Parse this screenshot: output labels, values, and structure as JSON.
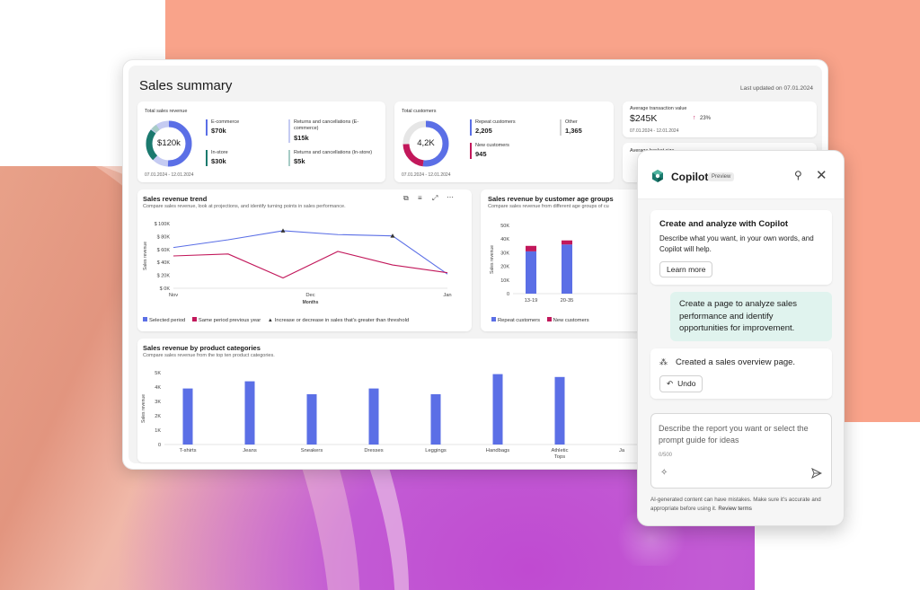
{
  "dashboard": {
    "title": "Sales summary",
    "last_updated": "Last updated on 07.01.2024",
    "total_sales": {
      "label": "Total sales revenue",
      "center": "$120k",
      "date_range": "07.01.2024 - 12.01.2024",
      "items": [
        {
          "label": "E-commerce",
          "value": "$70k",
          "color": "#5b6fe6"
        },
        {
          "label": "Returns and cancellations (E-commerce)",
          "value": "$15k",
          "color": "#c5cbf2"
        },
        {
          "label": "In-store",
          "value": "$30k",
          "color": "#1b7a6e"
        },
        {
          "label": "Returns and cancellations (In-store)",
          "value": "$5k",
          "color": "#a7ccc6"
        }
      ]
    },
    "total_customers": {
      "label": "Total customers",
      "center": "4,2K",
      "date_range": "07.01.2024 - 12.01.2024",
      "items": [
        {
          "label": "Repeat customers",
          "value": "2,205",
          "color": "#5b6fe6"
        },
        {
          "label": "Other",
          "value": "1,365",
          "color": "#d1d1d1"
        },
        {
          "label": "New customers",
          "value": "945",
          "color": "#c2185b"
        }
      ]
    },
    "avg_transaction": {
      "label": "Average transaction value",
      "value": "$245K",
      "change": "23%",
      "date_range": "07.01.2024 - 12.01.2024"
    },
    "avg_basket": {
      "label": "Average basket size"
    },
    "trend": {
      "title": "Sales revenue trend",
      "subtitle": "Compare sales revenue, look at projections, and identify turning points in sales performance.",
      "legend": [
        "Selected period",
        "Same period previous year",
        "Increase or decrease in sales that's greater than threshold"
      ],
      "icons": [
        "copy-icon",
        "filter-icon",
        "expand-icon",
        "more-icon"
      ]
    },
    "age": {
      "title": "Sales revenue by customer age groups",
      "subtitle": "Compare sales revenue from different age groups of cu",
      "legend": [
        "Repeat customers",
        "New customers"
      ]
    },
    "categories": {
      "title": "Sales revenue by product categories",
      "subtitle": "Compare sales revenue from the top ten product categories."
    }
  },
  "chart_data": [
    {
      "type": "line",
      "title": "Sales revenue trend",
      "xlabel": "Months",
      "ylabel": "Sales revenue",
      "x_ticks": [
        "Nov",
        "Dec",
        "Jan"
      ],
      "y_ticks": [
        "$ 100K",
        "$ 80K",
        "$ 60K",
        "$ 40K",
        "$ 20K",
        "$ 0K"
      ],
      "ylim": [
        0,
        100
      ],
      "x": [
        0,
        1,
        2,
        3,
        4,
        5
      ],
      "series": [
        {
          "name": "Selected period",
          "values": [
            63,
            75,
            89,
            83,
            81,
            22
          ],
          "color": "#5b6fe6"
        },
        {
          "name": "Same period previous year",
          "values": [
            50,
            53,
            16,
            57,
            36,
            24
          ],
          "color": "#c2185b"
        }
      ],
      "threshold_markers": [
        2,
        4
      ]
    },
    {
      "type": "bar",
      "title": "Sales revenue by customer age groups",
      "ylabel": "Sales revenue",
      "categories": [
        "13-19",
        "20-35"
      ],
      "y_ticks": [
        "50K",
        "40K",
        "30K",
        "20K",
        "10K",
        "0"
      ],
      "ylim": [
        0,
        50
      ],
      "series": [
        {
          "name": "Repeat customers",
          "values": [
            31,
            36
          ],
          "color": "#5b6fe6"
        },
        {
          "name": "New customers",
          "values": [
            4,
            3
          ],
          "color": "#c2185b"
        }
      ]
    },
    {
      "type": "bar",
      "title": "Sales revenue by product categories",
      "ylabel": "Sales revenue",
      "categories": [
        "T-shirts",
        "Jeans",
        "Sneakers",
        "Dresses",
        "Leggings",
        "Handbags",
        "Athletic Tops",
        "Ja"
      ],
      "y_ticks": [
        "5K",
        "4K",
        "3K",
        "2K",
        "1K",
        "0"
      ],
      "ylim": [
        0,
        5
      ],
      "values": [
        3.9,
        4.4,
        3.5,
        3.9,
        3.5,
        4.9,
        4.7,
        null
      ],
      "color": "#5b6fe6"
    }
  ],
  "copilot": {
    "title": "Copilot",
    "badge": "Preview",
    "intro_title": "Create and analyze with Copilot",
    "intro_text": "Describe what you want, in your own words, and Copilot will help.",
    "learn_more": "Learn more",
    "user_message": "Create a page to analyze sales performance and identify opportunities for improvement.",
    "response": "Created a sales overview page.",
    "undo": "Undo",
    "input_placeholder": "Describe the report you want or select the prompt guide for ideas",
    "char_count": "0/500",
    "disclaimer": "AI-generated content can have mistakes. Make sure it's accurate and appropriate before using it.",
    "review_terms": "Review terms"
  }
}
